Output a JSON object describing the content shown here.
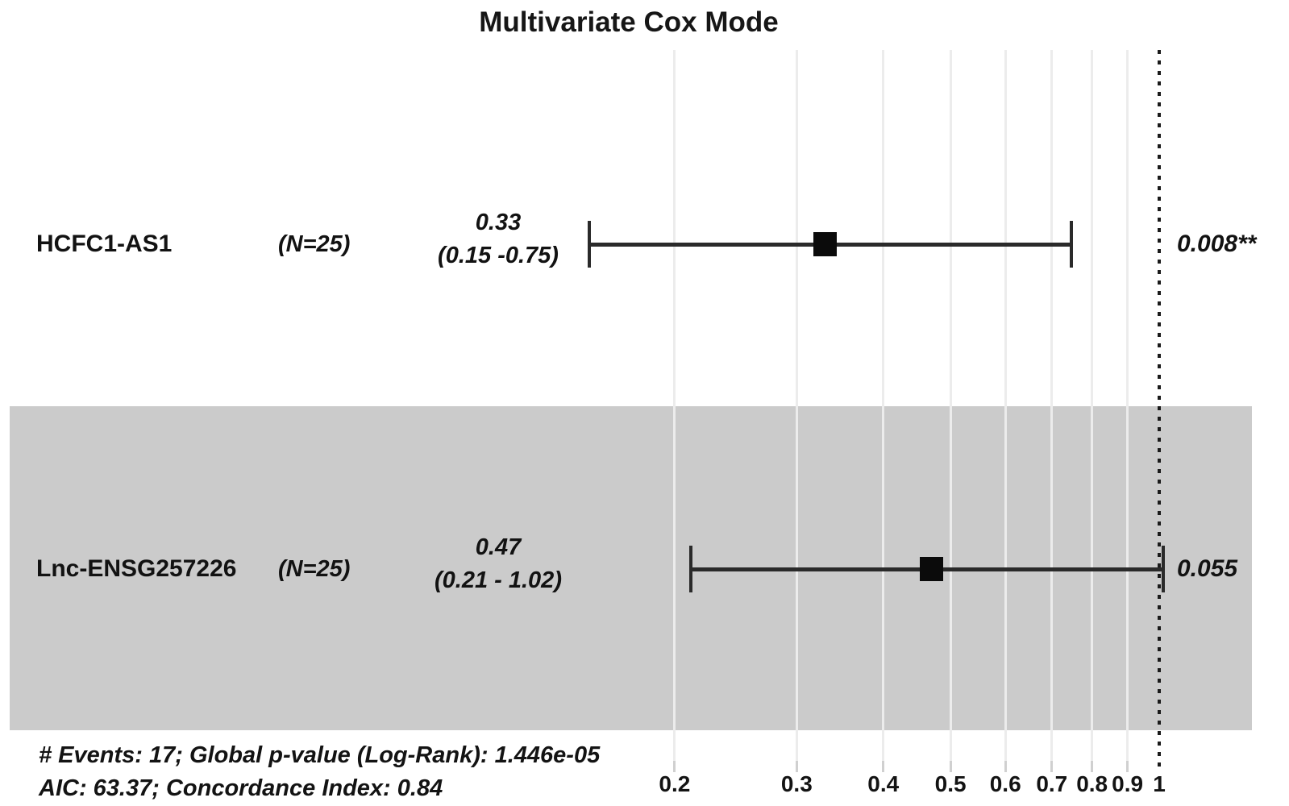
{
  "chart_data": {
    "type": "forest",
    "title": "Multivariate Cox Mode",
    "x_axis": {
      "scale": "log10",
      "ticks": [
        0.2,
        0.3,
        0.4,
        0.5,
        0.6,
        0.7,
        0.8,
        0.9,
        1
      ],
      "tick_labels": [
        "0.2",
        "0.3",
        "0.4",
        "0.5",
        "0.6",
        "0.7",
        "0.8",
        "0.9",
        "1"
      ],
      "range": [
        0.13,
        1.1
      ],
      "reference_line": 1,
      "grid": true
    },
    "rows": [
      {
        "label": "HCFC1-AS1",
        "n_label": "(N=25)",
        "hr": 0.33,
        "ci_low": 0.15,
        "ci_high": 0.75,
        "estimate_text": "0.33",
        "ci_text": "(0.15 -0.75)",
        "p_text": "0.008**",
        "shaded": false
      },
      {
        "label": "Lnc-ENSG257226",
        "n_label": "(N=25)",
        "hr": 0.47,
        "ci_low": 0.21,
        "ci_high": 1.02,
        "estimate_text": "0.47",
        "ci_text": "(0.21 - 1.02)",
        "p_text": "0.055",
        "shaded": true
      }
    ],
    "footer": [
      "# Events: 17; Global p-value (Log-Rank): 1.446e-05",
      "AIC: 63.37; Concordance Index: 0.84"
    ],
    "colors": {
      "stripe": "#cbcbcb",
      "gridline": "#ececec",
      "marker": "#0b0b0b",
      "reference_line": "#1a1a1a"
    }
  }
}
